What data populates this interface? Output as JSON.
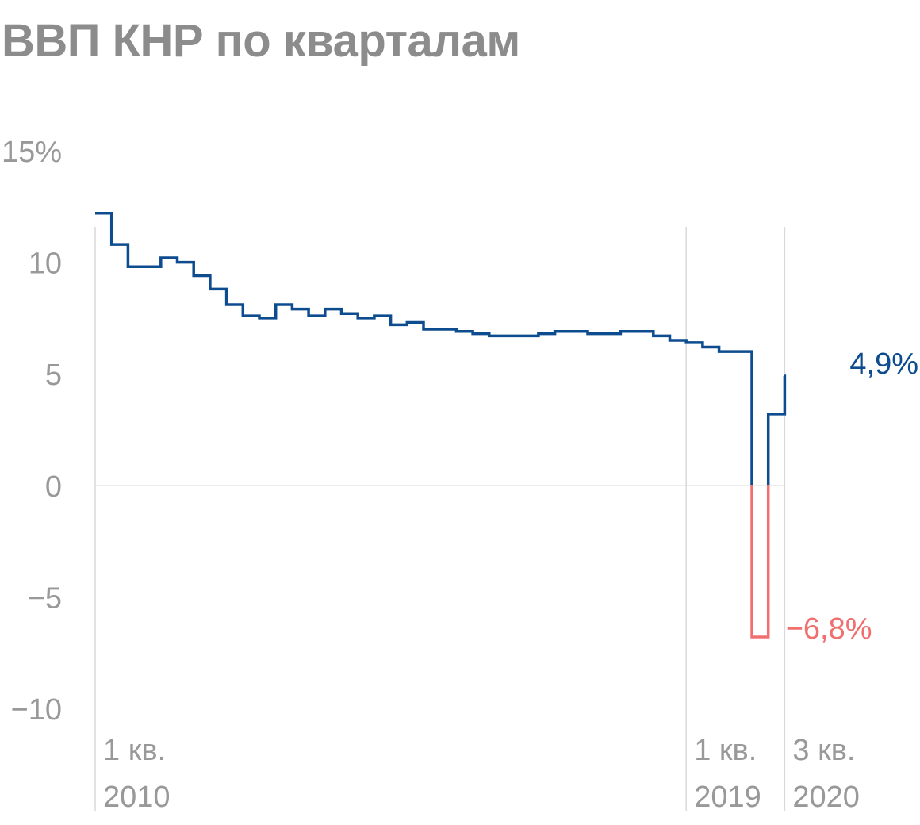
{
  "chart_data": {
    "type": "line",
    "title": "ВВП КНР по кварталам",
    "xlabel": "",
    "ylabel": "",
    "ylim": [
      -10,
      15
    ],
    "y_ticks": [
      {
        "value": 15,
        "label": "15%"
      },
      {
        "value": 10,
        "label": "10"
      },
      {
        "value": 5,
        "label": "5"
      },
      {
        "value": 0,
        "label": "0"
      },
      {
        "value": -5,
        "label": "−5"
      },
      {
        "value": -10,
        "label": "−10"
      }
    ],
    "x_ticks": [
      {
        "quarter_index": 0,
        "line1": "1 кв.",
        "line2": "2010"
      },
      {
        "quarter_index": 36,
        "line1": "1 кв.",
        "line2": "2019"
      },
      {
        "quarter_index": 42,
        "line1": "3 кв.",
        "line2": "2020"
      }
    ],
    "grid": "vertical at labeled quarters, horizontal at 0",
    "colors": {
      "positive": "#0d4c8f",
      "negative": "#f07070",
      "axis_text": "#999999",
      "title": "#8c8c8c",
      "grid": "#d9d9d9"
    },
    "series": [
      {
        "x": [
          "1 кв. 2010",
          "2 кв. 2010",
          "3 кв. 2010",
          "4 кв. 2010",
          "1 кв. 2011",
          "2 кв. 2011",
          "3 кв. 2011",
          "4 кв. 2011",
          "1 кв. 2012",
          "2 кв. 2012",
          "3 кв. 2012",
          "4 кв. 2012",
          "1 кв. 2013",
          "2 кв. 2013",
          "3 кв. 2013",
          "4 кв. 2013",
          "1 кв. 2014",
          "2 кв. 2014",
          "3 кв. 2014",
          "4 кв. 2014",
          "1 кв. 2015",
          "2 кв. 2015",
          "3 кв. 2015",
          "4 кв. 2015",
          "1 кв. 2016",
          "2 кв. 2016",
          "3 кв. 2016",
          "4 кв. 2016",
          "1 кв. 2017",
          "2 кв. 2017",
          "3 кв. 2017",
          "4 кв. 2017",
          "1 кв. 2018",
          "2 кв. 2018",
          "3 кв. 2018",
          "4 кв. 2018",
          "1 кв. 2019",
          "2 кв. 2019",
          "3 кв. 2019",
          "4 кв. 2019",
          "1 кв. 2020",
          "2 кв. 2020",
          "3 кв. 2020"
        ],
        "values": [
          12.2,
          10.8,
          9.8,
          9.8,
          10.2,
          10.0,
          9.4,
          8.8,
          8.1,
          7.6,
          7.5,
          8.1,
          7.9,
          7.6,
          7.9,
          7.7,
          7.5,
          7.6,
          7.2,
          7.3,
          7.0,
          7.0,
          6.9,
          6.8,
          6.7,
          6.7,
          6.7,
          6.8,
          6.9,
          6.9,
          6.8,
          6.8,
          6.9,
          6.9,
          6.7,
          6.5,
          6.4,
          6.2,
          6.0,
          6.0,
          -6.8,
          3.2,
          4.9
        ]
      }
    ],
    "annotations": [
      {
        "label": "4,9%",
        "quarter_index": 42,
        "value": 4.9,
        "color": "positive"
      },
      {
        "label": "−6,8%",
        "quarter_index": 40,
        "value": -6.8,
        "color": "negative"
      }
    ]
  }
}
